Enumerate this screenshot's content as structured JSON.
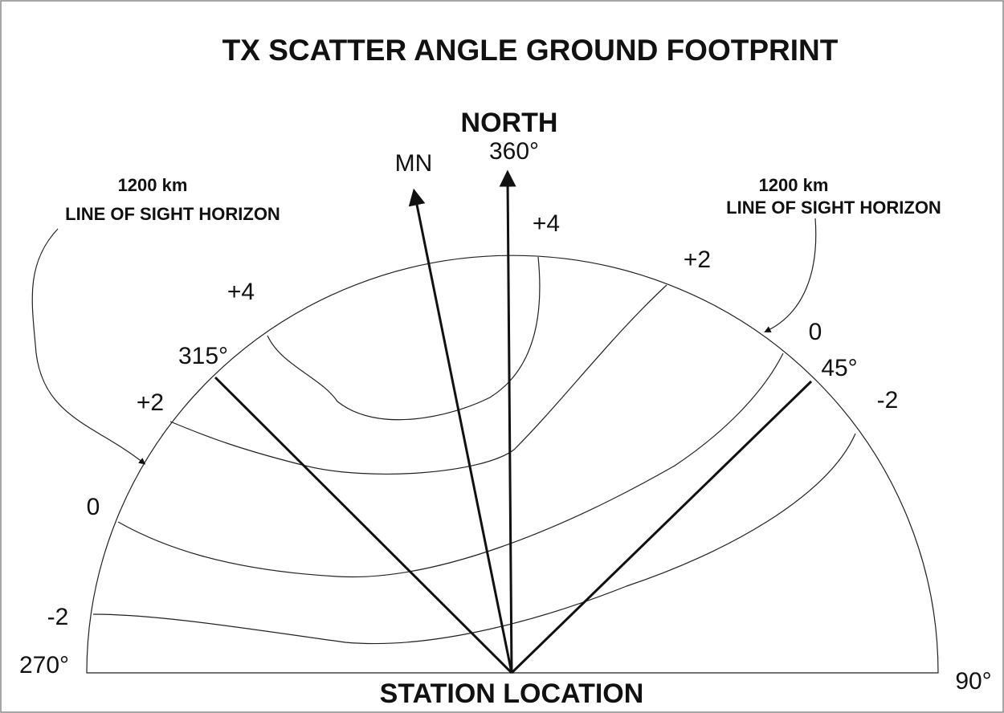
{
  "title": "TX SCATTER ANGLE GROUND FOOTPRINT",
  "directions": {
    "north": "NORTH",
    "mn": "MN"
  },
  "bearings": [
    "360°",
    "315°",
    "45°",
    "270°",
    "90°"
  ],
  "contours": {
    "left": [
      "+4",
      "+2",
      "0",
      "-2"
    ],
    "right": [
      "+4",
      "+2",
      "0",
      "-2"
    ]
  },
  "annotations": [
    {
      "distance": "1200 km",
      "label": "LINE OF SIGHT HORIZON"
    },
    {
      "distance": "1200 km",
      "label": "LINE OF SIGHT HORIZON"
    }
  ],
  "station": "STATION LOCATION"
}
